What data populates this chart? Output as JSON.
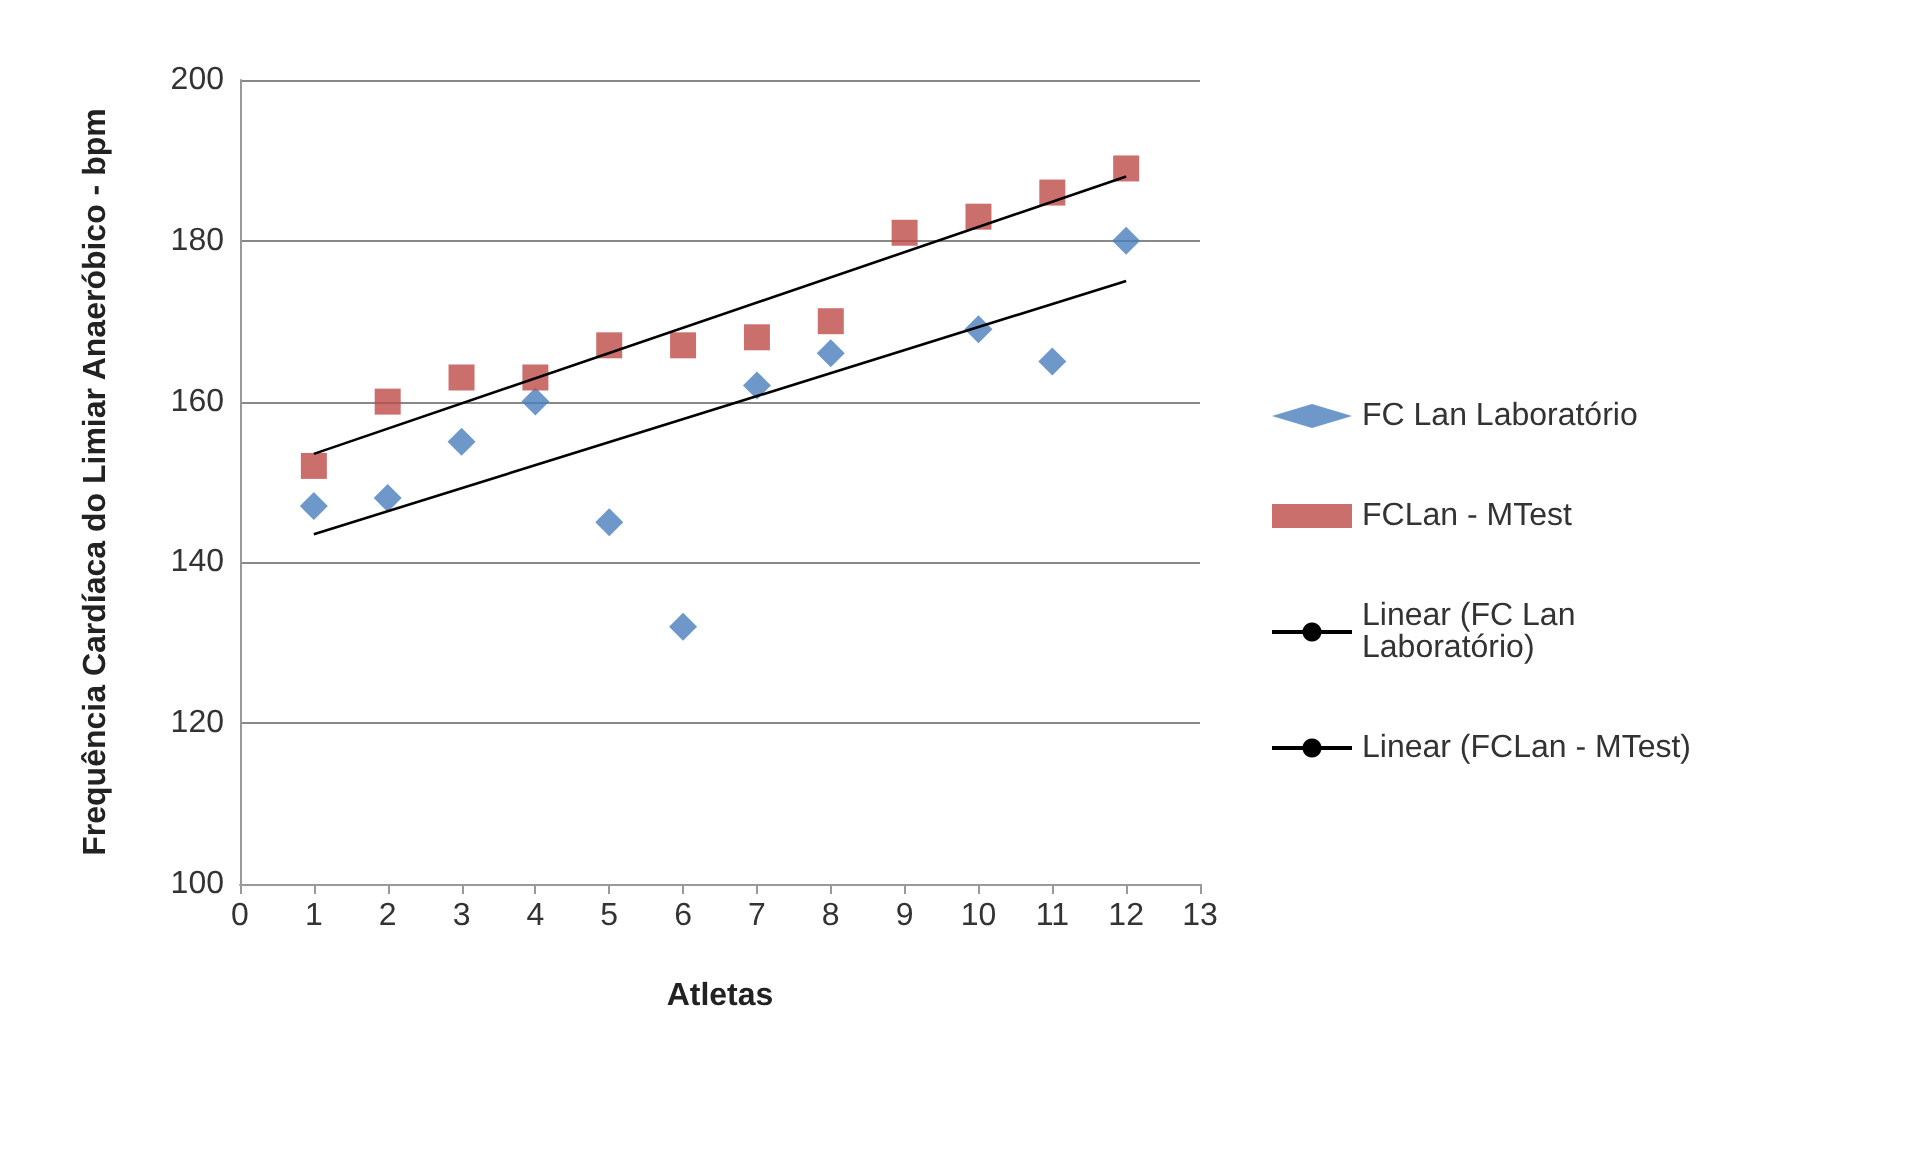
{
  "chart_data": {
    "type": "scatter",
    "xlabel": "Atletas",
    "ylabel": "Frequência Cardíaca do Limiar Anaeróbico - bpm",
    "xlim": [
      0,
      13
    ],
    "xticks": [
      0,
      1,
      2,
      3,
      4,
      5,
      6,
      7,
      8,
      9,
      10,
      11,
      12,
      13
    ],
    "ylim": [
      100,
      200
    ],
    "yticks": [
      100,
      120,
      140,
      160,
      180,
      200
    ],
    "grid": "y",
    "legend": "right",
    "series": [
      {
        "name": "FC Lan Laboratório",
        "color": "#4a7ebb",
        "marker": "diamond",
        "x": [
          1,
          2,
          3,
          4,
          5,
          6,
          7,
          8,
          10,
          11,
          12
        ],
        "values": [
          147,
          148,
          155,
          160,
          145,
          132,
          162,
          166,
          169,
          165,
          180
        ]
      },
      {
        "name": "FCLan - MTest",
        "color": "#be4b48",
        "marker": "square",
        "x": [
          1,
          2,
          3,
          4,
          5,
          6,
          7,
          8,
          9,
          10,
          11,
          12
        ],
        "values": [
          152,
          160,
          163,
          163,
          167,
          167,
          168,
          170,
          181,
          183,
          186,
          189
        ]
      },
      {
        "name": "Linear (FC Lan Laboratório)",
        "type": "line",
        "color": "#000000",
        "marker": "none",
        "x": [
          1,
          12
        ],
        "values": [
          143.5,
          175
        ]
      },
      {
        "name": "Linear (FCLan - MTest)",
        "type": "line",
        "color": "#000000",
        "marker": "none",
        "x": [
          1,
          12
        ],
        "values": [
          153.5,
          188
        ]
      }
    ]
  }
}
